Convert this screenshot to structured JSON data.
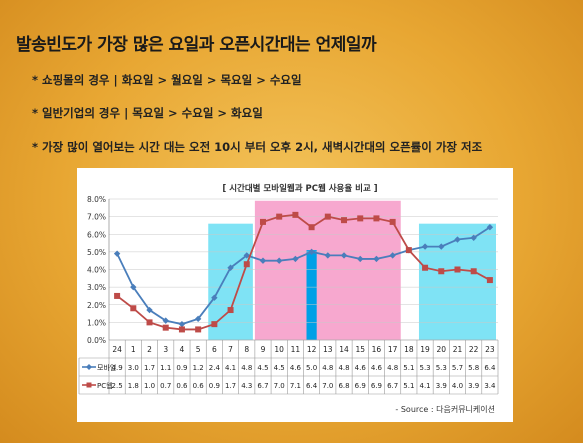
{
  "slide": {
    "title": "발송빈도가 가장 많은 요일과 오픈시간대는 언제일까",
    "bullets": [
      "* 쇼핑몰의 경우 | 화요일 > 월요일 >  목요일 > 수요일",
      "* 일반기업의 경우 | 목요일 > 수요일 > 화요일",
      "* 가장 많이 열어보는 시간 대는 오전 10시 부터 오후 2시, 새벽시간대의 오픈률이 가장 저조"
    ]
  },
  "colors": {
    "mobile": "#4a7ebb",
    "pc": "#be4b48",
    "cyan_band": "#7fe3f5",
    "pink_band": "#f7a8cf",
    "blue_bar": "#00a0e6"
  },
  "chart_data": {
    "type": "line",
    "title": "[ 시간대별 모바일웹과 PC웹 사용율 비교 ]",
    "categories": [
      "24",
      "1",
      "2",
      "3",
      "4",
      "5",
      "6",
      "7",
      "8",
      "9",
      "10",
      "11",
      "12",
      "13",
      "14",
      "15",
      "16",
      "17",
      "18",
      "19",
      "20",
      "21",
      "22",
      "23"
    ],
    "series": [
      {
        "name": "모바일",
        "values": [
          4.9,
          3.0,
          1.7,
          1.1,
          0.9,
          1.2,
          2.4,
          4.1,
          4.8,
          4.5,
          4.5,
          4.6,
          5.0,
          4.8,
          4.8,
          4.6,
          4.6,
          4.8,
          5.1,
          5.3,
          5.3,
          5.7,
          5.8,
          6.4
        ]
      },
      {
        "name": "PC웹",
        "values": [
          2.5,
          1.8,
          1.0,
          0.7,
          0.6,
          0.6,
          0.9,
          1.7,
          4.3,
          6.7,
          7.0,
          7.1,
          6.4,
          7.0,
          6.8,
          6.9,
          6.9,
          6.7,
          5.1,
          4.1,
          3.9,
          4.0,
          3.9,
          3.4
        ]
      }
    ],
    "highlights": [
      {
        "from": "6",
        "to": "8",
        "color": "cyan"
      },
      {
        "from": "9",
        "to": "17",
        "color": "pink"
      },
      {
        "from": "12",
        "to": "12",
        "color": "blue"
      },
      {
        "from": "19",
        "to": "23",
        "color": "cyan"
      }
    ],
    "ylim": [
      0,
      8
    ],
    "yticks": [
      "0.0%",
      "1.0%",
      "2.0%",
      "3.0%",
      "4.0%",
      "5.0%",
      "6.0%",
      "7.0%",
      "8.0%"
    ],
    "grid": true,
    "legend": "table-left",
    "source": "- Source : 다음커뮤니케이션"
  }
}
